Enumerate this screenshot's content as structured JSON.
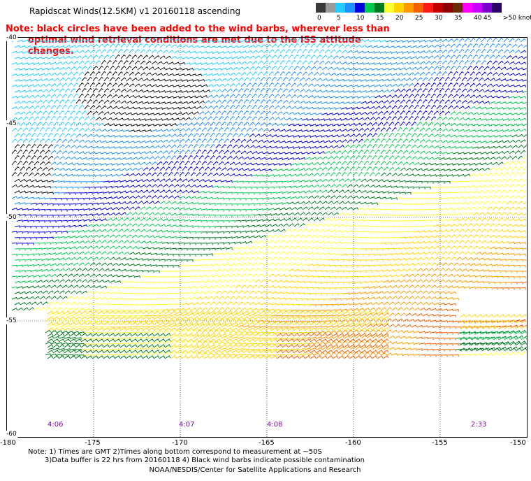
{
  "title": "Rapidscat Winds(12.5KM)  v1  20160118  ascending",
  "note": {
    "line1": "Note: black circles have been added to the wind barbs, wherever less than",
    "line2": "optimal wind retrieval conditions are met due to the ISS attitude changes."
  },
  "legend": {
    "unit": ">50 knots",
    "bins": [
      {
        "label": "0",
        "color": "#3a3a3a"
      },
      {
        "label": "",
        "color": "#9a9a9a"
      },
      {
        "label": "5",
        "color": "#22ccff"
      },
      {
        "label": "",
        "color": "#1e90ff"
      },
      {
        "label": "10",
        "color": "#0000dd"
      },
      {
        "label": "",
        "color": "#00c853"
      },
      {
        "label": "15",
        "color": "#007a1e"
      },
      {
        "label": "",
        "color": "#ffff33"
      },
      {
        "label": "20",
        "color": "#ffd400"
      },
      {
        "label": "",
        "color": "#ff9900"
      },
      {
        "label": "25",
        "color": "#f26200"
      },
      {
        "label": "",
        "color": "#ff1a1a"
      },
      {
        "label": "30",
        "color": "#c00000"
      },
      {
        "label": "",
        "color": "#8b0000"
      },
      {
        "label": "35",
        "color": "#6b2b00"
      },
      {
        "label": "",
        "color": "#ff00ff"
      },
      {
        "label": "40",
        "color": "#cc00ff"
      },
      {
        "label": "45",
        "color": "#7a00cc"
      },
      {
        "label": "",
        "color": "#2a0066"
      }
    ]
  },
  "axes": {
    "lat_labels": [
      "-40",
      "-45",
      "-50",
      "-55",
      "-60"
    ],
    "lon_labels": [
      "-180",
      "-175",
      "-170",
      "-165",
      "-160",
      "-155",
      "-150"
    ]
  },
  "pass_times": [
    "4:06",
    "4:07",
    "4:08",
    "2:33"
  ],
  "footnotes": {
    "line1": "Note: 1) Times are GMT 2)Times along bottom correspond to measurement at ~50S",
    "line2": "3)Data buffer is 22 hrs from 20160118 4) Black wind barbs indicate possible contamination"
  },
  "credit": "NOAA/NESDIS/Center for Satellite Applications and Research"
}
